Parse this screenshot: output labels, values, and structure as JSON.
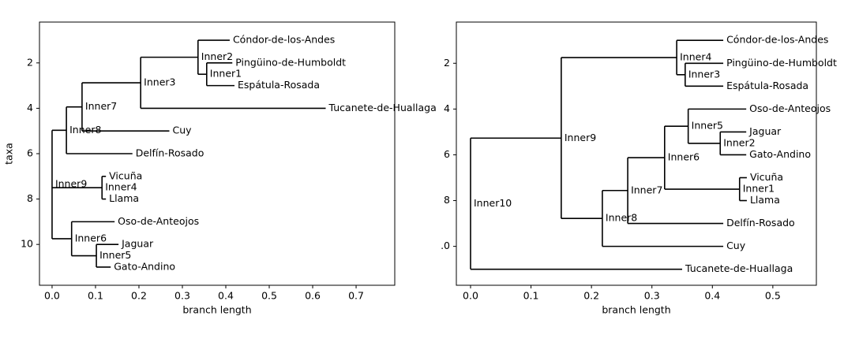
{
  "chart_data": [
    {
      "type": "tree",
      "xlabel": "branch length",
      "ylabel": "taxa",
      "xlim": [
        -0.029,
        0.789
      ],
      "ylim": [
        11.8,
        0.2
      ],
      "xticks": [
        {
          "value": 0,
          "label": "0.0"
        },
        0.1,
        0.2,
        0.3,
        0.4,
        0.5,
        0.6,
        0.7
      ],
      "yticks": [
        2,
        4,
        6,
        8,
        10
      ],
      "tree": {
        "name": "Inner9",
        "x": 0,
        "y": 7.36,
        "clades": [
          {
            "name": "Inner8",
            "x": 0.033,
            "y": 4.97,
            "clades": [
              {
                "name": "Inner7",
                "x": 0.069,
                "y": 3.94,
                "clades": [
                  {
                    "name": "Inner3",
                    "x": 0.204,
                    "y": 2.875,
                    "clades": [
                      {
                        "name": "Inner2",
                        "x": 0.336,
                        "y": 1.75,
                        "clades": [
                          {
                            "name": "Cóndor-de-los-Andes",
                            "x": 0.409,
                            "y": 1
                          },
                          {
                            "name": "Inner1",
                            "x": 0.356,
                            "y": 2.5,
                            "clades": [
                              {
                                "name": "Pingüino-de-Humboldt",
                                "x": 0.415,
                                "y": 2
                              },
                              {
                                "name": "Espátula-Rosada",
                                "x": 0.42,
                                "y": 3
                              }
                            ]
                          }
                        ]
                      },
                      {
                        "name": "Tucanete-de-Huallaga",
                        "x": 0.63,
                        "y": 4
                      }
                    ]
                  },
                  {
                    "name": "Cuy",
                    "x": 0.27,
                    "y": 5
                  }
                ]
              },
              {
                "name": "Delfín-Rosado",
                "x": 0.185,
                "y": 6
              }
            ]
          },
          {
            "name": "Inner4",
            "x": 0.115,
            "y": 7.5,
            "clades": [
              {
                "name": "Vicuña",
                "x": 0.124,
                "y": 7
              },
              {
                "name": "Llama",
                "x": 0.124,
                "y": 8
              }
            ]
          },
          {
            "name": "Inner6",
            "x": 0.045,
            "y": 9.75,
            "clades": [
              {
                "name": "Oso-de-Anteojos",
                "x": 0.144,
                "y": 9
              },
              {
                "name": "Inner5",
                "x": 0.102,
                "y": 10.5,
                "clades": [
                  {
                    "name": "Jaguar",
                    "x": 0.153,
                    "y": 10
                  },
                  {
                    "name": "Gato-Andino",
                    "x": 0.135,
                    "y": 11
                  }
                ]
              }
            ]
          }
        ]
      }
    },
    {
      "type": "tree",
      "xlabel": "branch length",
      "xlim": [
        -0.0235,
        0.572
      ],
      "ylim": [
        11.7,
        0.2
      ],
      "xticks": [
        {
          "value": 0,
          "label": "0.0"
        },
        0.1,
        0.2,
        0.3,
        0.4,
        0.5
      ],
      "yticks": [
        2,
        4,
        6,
        8,
        {
          "value": 10,
          "label": ".0"
        }
      ],
      "tree": {
        "name": "Inner10",
        "x": 0,
        "y": 8.13,
        "clades": [
          {
            "name": "Inner9",
            "x": 0.15,
            "y": 5.27,
            "clades": [
              {
                "name": "Inner4",
                "x": 0.341,
                "y": 1.75,
                "clades": [
                  {
                    "name": "Cóndor-de-los-Andes",
                    "x": 0.418,
                    "y": 1
                  },
                  {
                    "name": "Inner3",
                    "x": 0.355,
                    "y": 2.5,
                    "clades": [
                      {
                        "name": "Pingüino-de-Humboldt",
                        "x": 0.418,
                        "y": 2
                      },
                      {
                        "name": "Espátula-Rosada",
                        "x": 0.418,
                        "y": 3
                      }
                    ]
                  }
                ]
              },
              {
                "name": "Inner8",
                "x": 0.218,
                "y": 8.78,
                "clades": [
                  {
                    "name": "Inner7",
                    "x": 0.26,
                    "y": 7.56,
                    "clades": [
                      {
                        "name": "Inner6",
                        "x": 0.321,
                        "y": 6.125,
                        "clades": [
                          {
                            "name": "Inner5",
                            "x": 0.36,
                            "y": 4.75,
                            "clades": [
                              {
                                "name": "Oso-de-Anteojos",
                                "x": 0.456,
                                "y": 4
                              },
                              {
                                "name": "Inner2",
                                "x": 0.413,
                                "y": 5.5,
                                "clades": [
                                  {
                                    "name": "Jaguar",
                                    "x": 0.456,
                                    "y": 5
                                  },
                                  {
                                    "name": "Gato-Andino",
                                    "x": 0.456,
                                    "y": 6
                                  }
                                ]
                              }
                            ]
                          },
                          {
                            "name": "Inner1",
                            "x": 0.445,
                            "y": 7.5,
                            "clades": [
                              {
                                "name": "Vicuña",
                                "x": 0.457,
                                "y": 7
                              },
                              {
                                "name": "Llama",
                                "x": 0.457,
                                "y": 8
                              }
                            ]
                          }
                        ]
                      },
                      {
                        "name": "Delfín-Rosado",
                        "x": 0.418,
                        "y": 9
                      }
                    ]
                  },
                  {
                    "name": "Cuy",
                    "x": 0.418,
                    "y": 10
                  }
                ]
              }
            ]
          },
          {
            "name": "Tucanete-de-Huallaga",
            "x": 0.35,
            "y": 11
          }
        ]
      }
    }
  ]
}
